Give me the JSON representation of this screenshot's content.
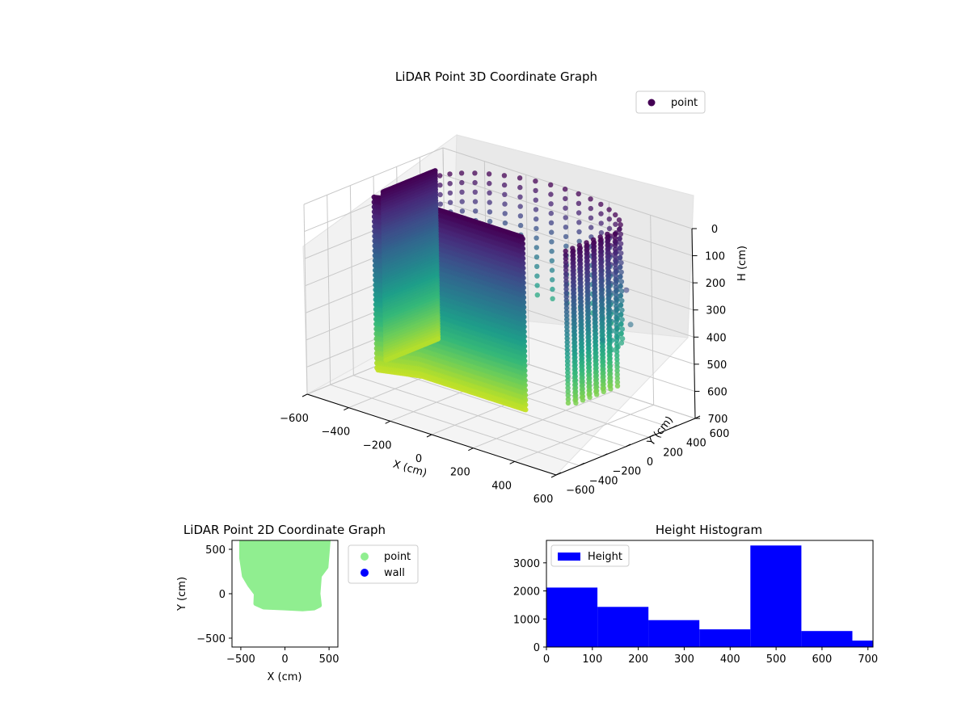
{
  "chart_data": [
    {
      "type": "scatter3d",
      "title": "LiDAR Point 3D Coordinate Graph",
      "xlabel": "X (cm)",
      "ylabel": "Y (cm)",
      "zlabel": "H (cm)",
      "xlim": [
        -600,
        600
      ],
      "ylim": [
        -600,
        600
      ],
      "zlim": [
        0,
        700
      ],
      "z_inverted": true,
      "x_ticks": [
        "−600",
        "−400",
        "−200",
        "0",
        "200",
        "400",
        "600"
      ],
      "y_ticks": [
        "−600",
        "−400",
        "−200",
        "0",
        "200",
        "400",
        "600"
      ],
      "z_ticks": [
        "0",
        "100",
        "200",
        "300",
        "400",
        "500",
        "600",
        "700"
      ],
      "colormap": "viridis",
      "legend": {
        "position": "upper right",
        "entries": [
          "point"
        ]
      },
      "series": [
        {
          "name": "point",
          "shape": "ring of wall points, x ≈ −500..500, y ≈ −180..600, heights 0..700",
          "marker_color": "#440154"
        }
      ]
    },
    {
      "type": "scatter",
      "title": "LiDAR Point 2D Coordinate Graph",
      "xlabel": "X (cm)",
      "ylabel": "Y (cm)",
      "xlim": [
        -600,
        600
      ],
      "ylim": [
        -600,
        600
      ],
      "x_ticks": [
        "−500",
        "0",
        "500"
      ],
      "y_ticks": [
        "−500",
        "0",
        "500"
      ],
      "legend": {
        "position": "outside right",
        "entries": [
          "point",
          "wall"
        ]
      },
      "series": [
        {
          "name": "point",
          "color": "#90ee90",
          "outline": [
            [
              -490,
              600
            ],
            [
              490,
              600
            ],
            [
              465,
              300
            ],
            [
              390,
              200
            ],
            [
              375,
              0
            ],
            [
              390,
              -130
            ],
            [
              330,
              -160
            ],
            [
              200,
              -170
            ],
            [
              0,
              -160
            ],
            [
              -240,
              -150
            ],
            [
              -330,
              -110
            ],
            [
              -325,
              0
            ],
            [
              -400,
              100
            ],
            [
              -460,
              200
            ],
            [
              -490,
              400
            ]
          ]
        },
        {
          "name": "wall",
          "color": "#0000ff",
          "points": []
        }
      ]
    },
    {
      "type": "bar",
      "title": "Height Histogram",
      "xlim": [
        0,
        711
      ],
      "ylim": [
        0,
        3800
      ],
      "x_ticks": [
        "0",
        "100",
        "200",
        "300",
        "400",
        "500",
        "600",
        "700"
      ],
      "y_ticks": [
        "0",
        "1000",
        "2000",
        "3000"
      ],
      "legend": {
        "position": "upper left",
        "entries": [
          "Height"
        ]
      },
      "color": "#0000ff",
      "bin_edges": [
        0,
        111,
        222,
        333,
        444,
        555,
        666,
        711
      ],
      "values": [
        2120,
        1430,
        960,
        630,
        3620,
        570,
        230
      ],
      "series": [
        {
          "name": "Height"
        }
      ]
    }
  ]
}
